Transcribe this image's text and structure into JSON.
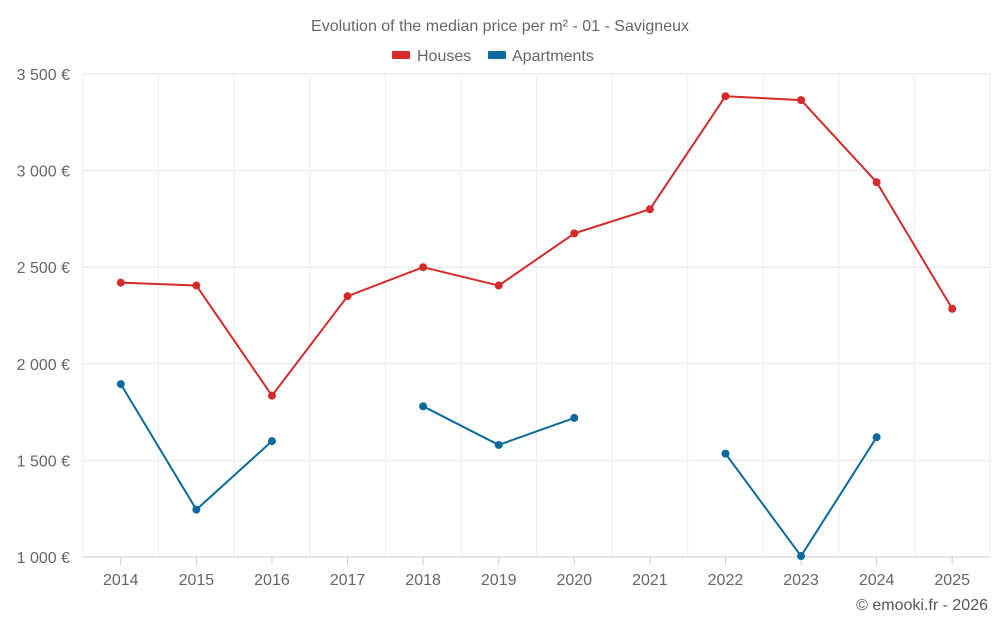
{
  "chart_data": {
    "type": "line",
    "title": "Evolution of the median price per m² - 01 - Savigneux",
    "categories": [
      "2014",
      "2015",
      "2016",
      "2017",
      "2018",
      "2019",
      "2020",
      "2021",
      "2022",
      "2023",
      "2024",
      "2025"
    ],
    "series": [
      {
        "name": "Houses",
        "color": "#d42a2a",
        "values": [
          2420,
          2405,
          1835,
          2350,
          2500,
          2405,
          2675,
          2800,
          3385,
          3365,
          2940,
          2285
        ]
      },
      {
        "name": "Apartments",
        "color": "#0b6a9c",
        "values": [
          1895,
          1245,
          1600,
          null,
          1780,
          1580,
          1720,
          null,
          1535,
          1005,
          1620,
          null
        ]
      }
    ],
    "ylim": [
      1000,
      3500
    ],
    "yticks": [
      1000,
      1500,
      2000,
      2500,
      3000,
      3500
    ],
    "ytick_labels": [
      "1 000 €",
      "1 500 €",
      "2 000 €",
      "2 500 €",
      "3 000 €",
      "3 500 €"
    ],
    "xlabel": "",
    "ylabel": "",
    "grid": true,
    "legend_position": "top-center"
  },
  "credit": "© emooki.fr - 2026"
}
